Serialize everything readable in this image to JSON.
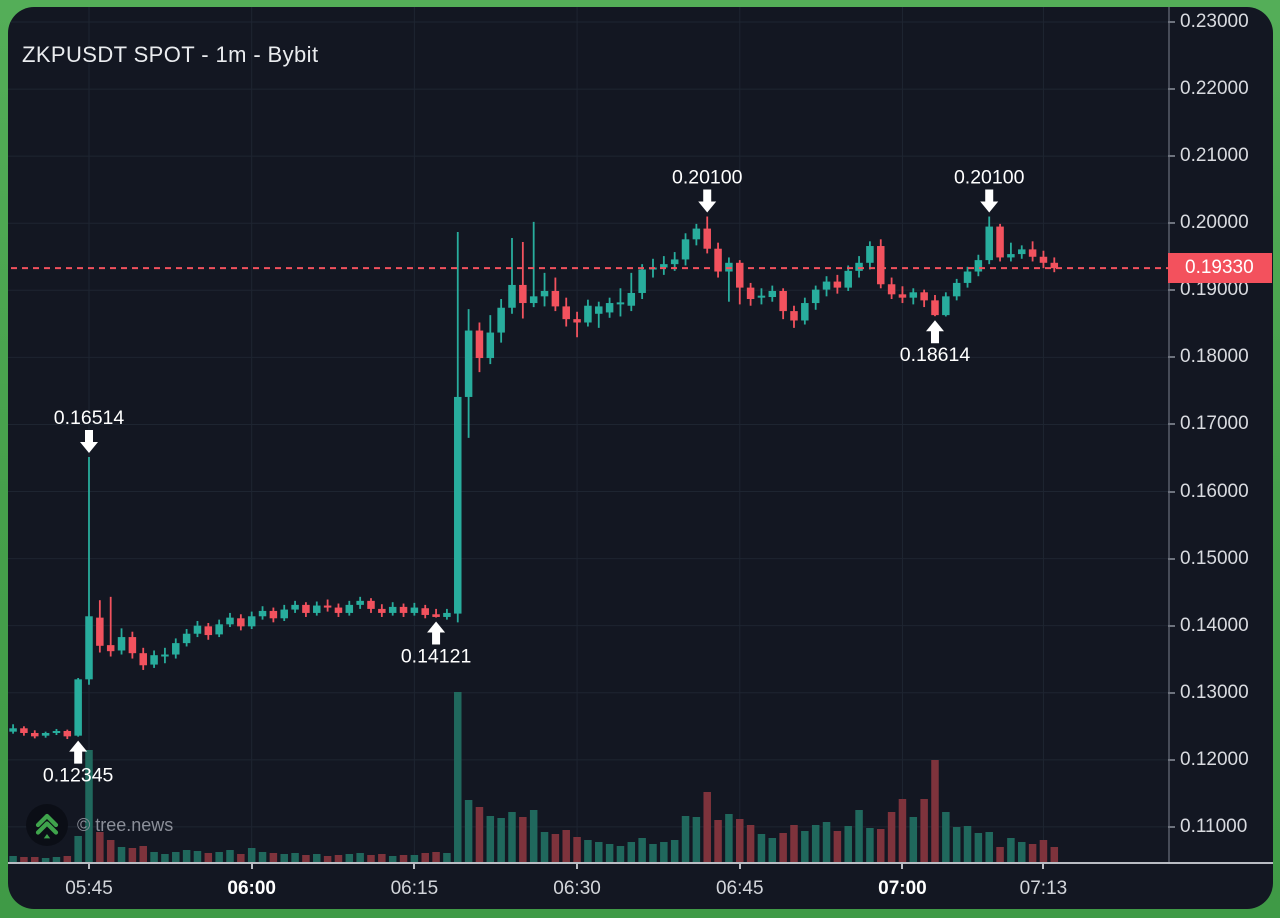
{
  "header": {
    "title": "ZKPUSDT SPOT - 1m - Bybit"
  },
  "watermark": {
    "text": "© tree.news",
    "logo_icon": "tree-news-double-chevron-up",
    "logo_color": "#3fa44c"
  },
  "chart_data": {
    "type": "candlestick",
    "title": "ZKPUSDT SPOT - 1m - Bybit",
    "symbol": "ZKPUSDT",
    "market": "SPOT",
    "interval": "1m",
    "exchange": "Bybit",
    "xlabel": "",
    "ylabel": "",
    "grid": true,
    "legend": "none",
    "ylim": [
      0.11,
      0.23
    ],
    "price_axis": {
      "ticks": [
        {
          "v": 0.23,
          "label": "0.23000"
        },
        {
          "v": 0.22,
          "label": "0.22000"
        },
        {
          "v": 0.21,
          "label": "0.21000"
        },
        {
          "v": 0.2,
          "label": "0.20000"
        },
        {
          "v": 0.19,
          "label": "0.19000"
        },
        {
          "v": 0.18,
          "label": "0.18000"
        },
        {
          "v": 0.17,
          "label": "0.17000"
        },
        {
          "v": 0.16,
          "label": "0.16000"
        },
        {
          "v": 0.15,
          "label": "0.15000"
        },
        {
          "v": 0.14,
          "label": "0.14000"
        },
        {
          "v": 0.13,
          "label": "0.13000"
        },
        {
          "v": 0.12,
          "label": "0.12000"
        },
        {
          "v": 0.11,
          "label": "0.11000"
        }
      ]
    },
    "time_axis": {
      "ticks": [
        {
          "t": "05:45",
          "label": "05:45",
          "bold": false
        },
        {
          "t": "06:00",
          "label": "06:00",
          "bold": true
        },
        {
          "t": "06:15",
          "label": "06:15",
          "bold": false
        },
        {
          "t": "06:30",
          "label": "06:30",
          "bold": false
        },
        {
          "t": "06:45",
          "label": "06:45",
          "bold": false
        },
        {
          "t": "07:00",
          "label": "07:00",
          "bold": true
        },
        {
          "t": "07:13",
          "label": "07:13",
          "bold": false
        }
      ]
    },
    "last_price": {
      "value": 0.1933,
      "label": "0.19330"
    },
    "annotations": [
      {
        "t": "05:45",
        "price": 0.16514,
        "label": "0.16514",
        "dir": "high"
      },
      {
        "t": "05:44",
        "price": 0.12345,
        "label": "0.12345",
        "dir": "low"
      },
      {
        "t": "06:17",
        "price": 0.14121,
        "label": "0.14121",
        "dir": "low"
      },
      {
        "t": "06:42",
        "price": 0.201,
        "label": "0.20100",
        "dir": "high"
      },
      {
        "t": "07:03",
        "price": 0.18614,
        "label": "0.18614",
        "dir": "low"
      },
      {
        "t": "07:08",
        "price": 0.201,
        "label": "0.20100",
        "dir": "high"
      }
    ],
    "colors": {
      "up": "#28ad9d",
      "down": "#f2525e",
      "vol_up": "#20685d",
      "vol_down": "#7e333c",
      "grid": "#1e2531",
      "background": "#131722",
      "frame": "#46a04b",
      "last_price": "#f3515d",
      "annotation": "#ffffff"
    },
    "candles_columns": [
      "time",
      "open",
      "high",
      "low",
      "close",
      "volume_rel"
    ],
    "candles": [
      [
        "05:37",
        0.124,
        0.1246,
        0.1237,
        0.1243,
        4
      ],
      [
        "05:38",
        0.1242,
        0.1253,
        0.1239,
        0.1247,
        6
      ],
      [
        "05:39",
        0.1247,
        0.125,
        0.1236,
        0.124,
        5
      ],
      [
        "05:40",
        0.124,
        0.1244,
        0.1232,
        0.1235,
        5
      ],
      [
        "05:41",
        0.1236,
        0.1242,
        0.1233,
        0.124,
        4
      ],
      [
        "05:42",
        0.124,
        0.1246,
        0.1237,
        0.1243,
        5
      ],
      [
        "05:43",
        0.1243,
        0.1245,
        0.1231,
        0.1235,
        6
      ],
      [
        "05:44",
        0.1236,
        0.1322,
        0.12345,
        0.132,
        26
      ],
      [
        "05:45",
        0.132,
        0.16514,
        0.1312,
        0.1414,
        112
      ],
      [
        "05:46",
        0.1412,
        0.1438,
        0.136,
        0.137,
        30
      ],
      [
        "05:47",
        0.1371,
        0.1443,
        0.1354,
        0.1362,
        22
      ],
      [
        "05:48",
        0.1363,
        0.1396,
        0.1357,
        0.1383,
        15
      ],
      [
        "05:49",
        0.1383,
        0.1391,
        0.1351,
        0.1359,
        14
      ],
      [
        "05:50",
        0.1359,
        0.1367,
        0.1334,
        0.1341,
        16
      ],
      [
        "05:51",
        0.1342,
        0.1363,
        0.1337,
        0.1356,
        10
      ],
      [
        "05:52",
        0.1355,
        0.1367,
        0.1344,
        0.1357,
        8
      ],
      [
        "05:53",
        0.1357,
        0.1381,
        0.1351,
        0.1374,
        10
      ],
      [
        "05:54",
        0.1374,
        0.1395,
        0.1369,
        0.1388,
        12
      ],
      [
        "05:55",
        0.1388,
        0.1407,
        0.1383,
        0.14,
        11
      ],
      [
        "05:56",
        0.1399,
        0.1404,
        0.1379,
        0.1386,
        9
      ],
      [
        "05:57",
        0.1387,
        0.1409,
        0.1383,
        0.1402,
        10
      ],
      [
        "05:58",
        0.1402,
        0.1419,
        0.1398,
        0.1412,
        12
      ],
      [
        "05:59",
        0.1411,
        0.1417,
        0.1393,
        0.1399,
        8
      ],
      [
        "06:00",
        0.1399,
        0.1421,
        0.1395,
        0.1414,
        14
      ],
      [
        "06:01",
        0.1414,
        0.1429,
        0.1409,
        0.1422,
        10
      ],
      [
        "06:02",
        0.1422,
        0.1427,
        0.1405,
        0.1411,
        9
      ],
      [
        "06:03",
        0.1411,
        0.1431,
        0.1407,
        0.1424,
        8
      ],
      [
        "06:04",
        0.1424,
        0.1437,
        0.1419,
        0.1431,
        9
      ],
      [
        "06:05",
        0.1431,
        0.1435,
        0.1413,
        0.1419,
        7
      ],
      [
        "06:06",
        0.1419,
        0.1436,
        0.1415,
        0.143,
        8
      ],
      [
        "06:07",
        0.143,
        0.1439,
        0.1421,
        0.1427,
        6
      ],
      [
        "06:08",
        0.1427,
        0.1433,
        0.1413,
        0.1419,
        7
      ],
      [
        "06:09",
        0.1419,
        0.1437,
        0.1415,
        0.1431,
        8
      ],
      [
        "06:10",
        0.1431,
        0.1443,
        0.1425,
        0.1437,
        9
      ],
      [
        "06:11",
        0.1437,
        0.1441,
        0.1419,
        0.1425,
        7
      ],
      [
        "06:12",
        0.1425,
        0.1432,
        0.1413,
        0.1419,
        8
      ],
      [
        "06:13",
        0.1419,
        0.1435,
        0.1415,
        0.1428,
        6
      ],
      [
        "06:14",
        0.1428,
        0.1433,
        0.1413,
        0.1419,
        7
      ],
      [
        "06:15",
        0.1419,
        0.1434,
        0.1415,
        0.1427,
        7
      ],
      [
        "06:16",
        0.1426,
        0.1431,
        0.1411,
        0.1416,
        9
      ],
      [
        "06:17",
        0.1417,
        0.1425,
        0.14121,
        0.1413,
        10
      ],
      [
        "06:18",
        0.1413,
        0.1425,
        0.1409,
        0.1419,
        9
      ],
      [
        "06:19",
        0.1418,
        0.1987,
        0.1405,
        0.1741,
        170
      ],
      [
        "06:20",
        0.1741,
        0.1872,
        0.168,
        0.184,
        62
      ],
      [
        "06:21",
        0.184,
        0.1852,
        0.1778,
        0.1799,
        55
      ],
      [
        "06:22",
        0.1799,
        0.1863,
        0.179,
        0.1837,
        46
      ],
      [
        "06:23",
        0.1837,
        0.1887,
        0.1822,
        0.1874,
        44
      ],
      [
        "06:24",
        0.1874,
        0.1978,
        0.1865,
        0.1908,
        50
      ],
      [
        "06:25",
        0.1908,
        0.1972,
        0.1858,
        0.1881,
        45
      ],
      [
        "06:26",
        0.1881,
        0.2002,
        0.1875,
        0.1891,
        52
      ],
      [
        "06:27",
        0.1891,
        0.1926,
        0.1876,
        0.1899,
        30
      ],
      [
        "06:28",
        0.1899,
        0.1919,
        0.1869,
        0.1876,
        28
      ],
      [
        "06:29",
        0.1876,
        0.1889,
        0.1846,
        0.1857,
        32
      ],
      [
        "06:30",
        0.1857,
        0.1868,
        0.183,
        0.1852,
        25
      ],
      [
        "06:31",
        0.1852,
        0.1886,
        0.1846,
        0.1877,
        22
      ],
      [
        "06:32",
        0.1865,
        0.1883,
        0.1844,
        0.1876,
        20
      ],
      [
        "06:33",
        0.1867,
        0.1889,
        0.1859,
        0.1881,
        18
      ],
      [
        "06:34",
        0.188,
        0.1903,
        0.1861,
        0.1882,
        16
      ],
      [
        "06:35",
        0.1877,
        0.1926,
        0.1869,
        0.1896,
        20
      ],
      [
        "06:36",
        0.1896,
        0.1939,
        0.1887,
        0.1931,
        24
      ],
      [
        "06:37",
        0.1931,
        0.1947,
        0.1919,
        0.1934,
        18
      ],
      [
        "06:38",
        0.1934,
        0.1951,
        0.1923,
        0.1939,
        20
      ],
      [
        "06:39",
        0.1939,
        0.1957,
        0.1929,
        0.1946,
        22
      ],
      [
        "06:40",
        0.1946,
        0.1985,
        0.1937,
        0.1976,
        46
      ],
      [
        "06:41",
        0.1976,
        0.1999,
        0.1967,
        0.1992,
        45
      ],
      [
        "06:42",
        0.1992,
        0.201,
        0.1955,
        0.1962,
        70
      ],
      [
        "06:43",
        0.1962,
        0.1971,
        0.1919,
        0.1928,
        42
      ],
      [
        "06:44",
        0.1928,
        0.1949,
        0.1883,
        0.1941,
        48
      ],
      [
        "06:45",
        0.1941,
        0.1945,
        0.1879,
        0.1904,
        43
      ],
      [
        "06:46",
        0.1904,
        0.1911,
        0.1877,
        0.1887,
        37
      ],
      [
        "06:47",
        0.1889,
        0.1903,
        0.1879,
        0.1892,
        28
      ],
      [
        "06:48",
        0.189,
        0.1907,
        0.1883,
        0.1899,
        24
      ],
      [
        "06:49",
        0.1899,
        0.1903,
        0.1857,
        0.1869,
        29
      ],
      [
        "06:50",
        0.1869,
        0.1877,
        0.1844,
        0.1855,
        37
      ],
      [
        "06:51",
        0.1855,
        0.1889,
        0.1849,
        0.1881,
        31
      ],
      [
        "06:52",
        0.1881,
        0.1907,
        0.1871,
        0.1901,
        37
      ],
      [
        "06:53",
        0.1901,
        0.1921,
        0.1891,
        0.1913,
        40
      ],
      [
        "06:54",
        0.1913,
        0.1923,
        0.1895,
        0.1904,
        31
      ],
      [
        "06:55",
        0.1904,
        0.1937,
        0.1899,
        0.1929,
        36
      ],
      [
        "06:56",
        0.1929,
        0.1951,
        0.1919,
        0.1941,
        52
      ],
      [
        "06:57",
        0.1941,
        0.1973,
        0.1931,
        0.1966,
        34
      ],
      [
        "06:58",
        0.1966,
        0.1976,
        0.1903,
        0.1909,
        33
      ],
      [
        "06:59",
        0.1909,
        0.1919,
        0.1887,
        0.1894,
        50
      ],
      [
        "07:00",
        0.1894,
        0.1906,
        0.1881,
        0.1889,
        63
      ],
      [
        "07:01",
        0.1889,
        0.1903,
        0.1879,
        0.1897,
        45
      ],
      [
        "07:02",
        0.1897,
        0.1901,
        0.1875,
        0.1885,
        63
      ],
      [
        "07:03",
        0.1885,
        0.1893,
        0.18614,
        0.1863,
        102
      ],
      [
        "07:04",
        0.1863,
        0.1897,
        0.1861,
        0.1891,
        50
      ],
      [
        "07:05",
        0.1891,
        0.1917,
        0.1885,
        0.1911,
        35
      ],
      [
        "07:06",
        0.1911,
        0.1935,
        0.1904,
        0.1928,
        36
      ],
      [
        "07:07",
        0.1928,
        0.1953,
        0.1921,
        0.1945,
        29
      ],
      [
        "07:08",
        0.1945,
        0.201,
        0.1939,
        0.1995,
        30
      ],
      [
        "07:09",
        0.1995,
        0.1999,
        0.1943,
        0.1949,
        15
      ],
      [
        "07:10",
        0.1949,
        0.1971,
        0.1943,
        0.1954,
        24
      ],
      [
        "07:11",
        0.1954,
        0.1967,
        0.1947,
        0.1961,
        20
      ],
      [
        "07:12",
        0.1961,
        0.1973,
        0.1943,
        0.195,
        18
      ],
      [
        "07:13",
        0.195,
        0.1959,
        0.1933,
        0.1941,
        22
      ],
      [
        "07:14",
        0.1941,
        0.1949,
        0.1927,
        0.1933,
        15
      ]
    ]
  }
}
